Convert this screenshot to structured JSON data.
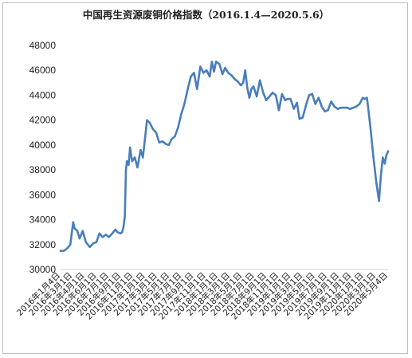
{
  "chart_data": {
    "type": "line",
    "title": "中国再生资源废铜价格指数（2016.1.4—2020.5.6）",
    "xlabel": "",
    "ylabel": "",
    "ylim": [
      30000,
      48000
    ],
    "yticks": [
      "48000",
      "46000",
      "44000",
      "42000",
      "40000",
      "38000",
      "36000",
      "34000",
      "32000",
      "30000"
    ],
    "grid": false,
    "legend": "none",
    "line_color": "#4a7ebb",
    "x_tick_labels": [
      "2016年1月4日",
      "2016年3月1日",
      "2016年4月1日",
      "2016年6月1日",
      "2016年7月1日",
      "2016年9月1日",
      "2016年11月1日",
      "2017年1月1日",
      "2017年3月1日",
      "2017年5月1日",
      "2017年7月1日",
      "2017年9月1日",
      "2017年11月1日",
      "2018年1月1日",
      "2018年3月1日",
      "2018年5月1日",
      "2018年7月1日",
      "2018年9月1日",
      "2018年11月1日",
      "2019年1月1日",
      "2019年3月1日",
      "2019年5月1日",
      "2019年7月1日",
      "2019年9月1日",
      "2019年11月1日",
      "2020年1月1日",
      "2020年3月1日",
      "2020年5月4日"
    ],
    "series": [
      {
        "name": "",
        "x": [
          "2016-01-04",
          "2016-01-20",
          "2016-02-05",
          "2016-02-20",
          "2016-03-05",
          "2016-03-12",
          "2016-03-25",
          "2016-04-05",
          "2016-04-20",
          "2016-05-05",
          "2016-05-25",
          "2016-06-10",
          "2016-06-25",
          "2016-07-10",
          "2016-07-25",
          "2016-08-10",
          "2016-08-25",
          "2016-09-10",
          "2016-09-25",
          "2016-10-05",
          "2016-10-20",
          "2016-10-28",
          "2016-11-03",
          "2016-11-10",
          "2016-11-15",
          "2016-11-20",
          "2016-11-28",
          "2016-12-05",
          "2016-12-15",
          "2016-12-28",
          "2017-01-10",
          "2017-01-25",
          "2017-02-05",
          "2017-02-15",
          "2017-02-25",
          "2017-03-10",
          "2017-03-25",
          "2017-04-10",
          "2017-04-25",
          "2017-05-10",
          "2017-05-25",
          "2017-06-10",
          "2017-06-25",
          "2017-07-10",
          "2017-07-25",
          "2017-08-10",
          "2017-08-25",
          "2017-09-10",
          "2017-09-25",
          "2017-10-10",
          "2017-10-25",
          "2017-11-10",
          "2017-11-25",
          "2017-12-10",
          "2017-12-25",
          "2018-01-05",
          "2018-01-15",
          "2018-01-25",
          "2018-02-10",
          "2018-02-25",
          "2018-03-10",
          "2018-03-25",
          "2018-04-10",
          "2018-04-25",
          "2018-05-10",
          "2018-05-25",
          "2018-06-05",
          "2018-06-15",
          "2018-06-25",
          "2018-07-05",
          "2018-07-15",
          "2018-07-25",
          "2018-08-10",
          "2018-08-25",
          "2018-09-10",
          "2018-09-25",
          "2018-10-10",
          "2018-10-25",
          "2018-11-10",
          "2018-11-25",
          "2018-12-10",
          "2018-12-25",
          "2019-01-05",
          "2019-01-20",
          "2019-02-05",
          "2019-02-20",
          "2019-03-05",
          "2019-03-20",
          "2019-04-05",
          "2019-04-20",
          "2019-05-05",
          "2019-05-20",
          "2019-06-05",
          "2019-06-20",
          "2019-07-05",
          "2019-07-20",
          "2019-08-05",
          "2019-08-20",
          "2019-09-05",
          "2019-09-20",
          "2019-10-05",
          "2019-10-20",
          "2019-11-05",
          "2019-11-20",
          "2019-12-05",
          "2019-12-20",
          "2020-01-05",
          "2020-01-15",
          "2020-01-25",
          "2020-02-10",
          "2020-02-25",
          "2020-03-10",
          "2020-03-23",
          "2020-04-01",
          "2020-04-10",
          "2020-04-20",
          "2020-04-28",
          "2020-05-06"
        ],
        "values": [
          31500,
          31500,
          31700,
          32000,
          33800,
          33300,
          33100,
          32500,
          33100,
          32200,
          31800,
          32100,
          32200,
          32900,
          32600,
          32800,
          32600,
          32900,
          33200,
          33000,
          32900,
          33000,
          33400,
          34300,
          38000,
          38700,
          38400,
          39800,
          38700,
          39000,
          38200,
          39600,
          39000,
          40500,
          42000,
          41800,
          41300,
          41000,
          40200,
          40300,
          40100,
          40000,
          40500,
          40700,
          41400,
          42500,
          43300,
          44500,
          45500,
          45800,
          44500,
          46300,
          45800,
          46000,
          45500,
          46700,
          45900,
          46700,
          46500,
          45700,
          46200,
          45800,
          45600,
          45300,
          45100,
          44800,
          45000,
          46000,
          44600,
          43800,
          44500,
          44700,
          43900,
          45200,
          44200,
          43600,
          43900,
          44200,
          44000,
          42800,
          44100,
          43600,
          43700,
          43700,
          42900,
          43400,
          42100,
          42200,
          43200,
          44000,
          44100,
          43300,
          43800,
          43100,
          42700,
          42800,
          43500,
          43100,
          42900,
          43000,
          43000,
          43000,
          42900,
          43000,
          43100,
          43300,
          43800,
          43700,
          43800,
          41500,
          39000,
          37000,
          35500,
          37500,
          39000,
          38500,
          39200,
          39500
        ]
      }
    ]
  }
}
